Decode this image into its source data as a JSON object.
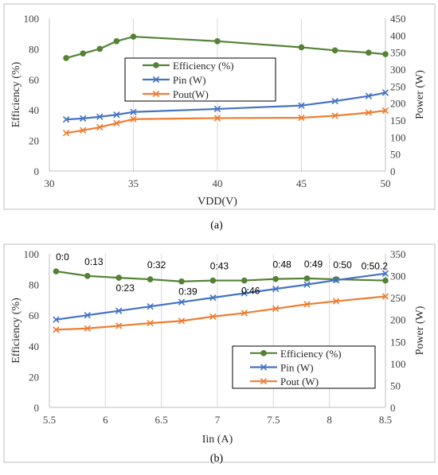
{
  "chart_data": [
    {
      "type": "line",
      "caption": "(a)",
      "xlabel": "VDD(V)",
      "ylabel": "Efficiency (%)",
      "y2label": "Power (W)",
      "xlim": [
        30,
        50
      ],
      "ylim": [
        0,
        100
      ],
      "y2lim": [
        0,
        450
      ],
      "x_ticks": [
        30,
        35,
        40,
        45,
        50
      ],
      "y_ticks": [
        0,
        20,
        40,
        60,
        80,
        100
      ],
      "y2_ticks": [
        0,
        50,
        100,
        150,
        200,
        250,
        300,
        350,
        400,
        450
      ],
      "grid": "vertical",
      "legend_position": "center",
      "series": [
        {
          "name": "Efficiency (%)",
          "axis": "left",
          "color": "#548235",
          "marker": "circle",
          "x": [
            31,
            32,
            33,
            34,
            35,
            40,
            45,
            47,
            49,
            50
          ],
          "y": [
            74,
            77,
            80,
            85,
            88,
            85,
            81,
            79,
            77.5,
            76.5
          ]
        },
        {
          "name": "Pin (W)",
          "axis": "right",
          "color": "#4472c4",
          "marker": "x",
          "x": [
            31,
            32,
            33,
            34,
            35,
            40,
            45,
            47,
            49,
            50
          ],
          "y": [
            152,
            155,
            160,
            166,
            174,
            183,
            193,
            206,
            221,
            231
          ]
        },
        {
          "name": "Pout(W)",
          "axis": "right",
          "color": "#ed7d31",
          "marker": "x",
          "x": [
            31,
            32,
            33,
            34,
            35,
            40,
            45,
            47,
            49,
            50
          ],
          "y": [
            112,
            120,
            129,
            141,
            153,
            156,
            157,
            163,
            172,
            178
          ]
        }
      ]
    },
    {
      "type": "line",
      "caption": "(b)",
      "xlabel": "Iin (A)",
      "ylabel": "Efficiency (%)",
      "y2label": "Power (W)",
      "xlim": [
        5.5,
        8.5
      ],
      "ylim": [
        0,
        100
      ],
      "y2lim": [
        0,
        350
      ],
      "x_ticks": [
        "5.5",
        "6",
        "6.5",
        "7",
        "7.5",
        "8",
        "8.5"
      ],
      "y_ticks": [
        0,
        20,
        40,
        60,
        80,
        100
      ],
      "y2_ticks": [
        0,
        50,
        100,
        150,
        200,
        250,
        300,
        350
      ],
      "grid": "vertical",
      "legend_position": "bottom-right",
      "x": [
        5.56,
        5.84,
        6.12,
        6.4,
        6.68,
        6.96,
        7.24,
        7.52,
        7.8,
        8.06,
        8.5
      ],
      "annotations": [
        {
          "text": "0:0",
          "x": 5.56,
          "y": 88.6
        },
        {
          "text": "0:13",
          "x": 5.84,
          "y": 85.6
        },
        {
          "text": "0:23",
          "x": 6.12,
          "y": 84.4
        },
        {
          "text": "0:32",
          "x": 6.4,
          "y": 83.4
        },
        {
          "text": "0:39",
          "x": 6.68,
          "y": 82.0
        },
        {
          "text": "0:43",
          "x": 6.96,
          "y": 82.6
        },
        {
          "text": "0:46",
          "x": 7.24,
          "y": 82.6
        },
        {
          "text": "0:48",
          "x": 7.52,
          "y": 83.6
        },
        {
          "text": "0:49",
          "x": 7.8,
          "y": 84.0
        },
        {
          "text": "0:50",
          "x": 8.06,
          "y": 83.4
        },
        {
          "text": "0:50.2",
          "x": 8.5,
          "y": 82.6
        }
      ],
      "series": [
        {
          "name": "Efficiency (%)",
          "axis": "left",
          "color": "#548235",
          "marker": "circle",
          "y": [
            88.6,
            85.6,
            84.4,
            83.4,
            82.0,
            82.6,
            82.6,
            83.6,
            84.0,
            83.4,
            82.6
          ]
        },
        {
          "name": "Pin (W)",
          "axis": "right",
          "color": "#4472c4",
          "marker": "x",
          "y": [
            200,
            210,
            220,
            230,
            240,
            250,
            260,
            270,
            280,
            290,
            305
          ]
        },
        {
          "name": "Pout (W)",
          "axis": "right",
          "color": "#ed7d31",
          "marker": "x",
          "y": [
            177,
            180,
            186,
            192,
            197,
            207,
            215,
            225,
            235,
            242,
            253
          ]
        }
      ]
    }
  ]
}
